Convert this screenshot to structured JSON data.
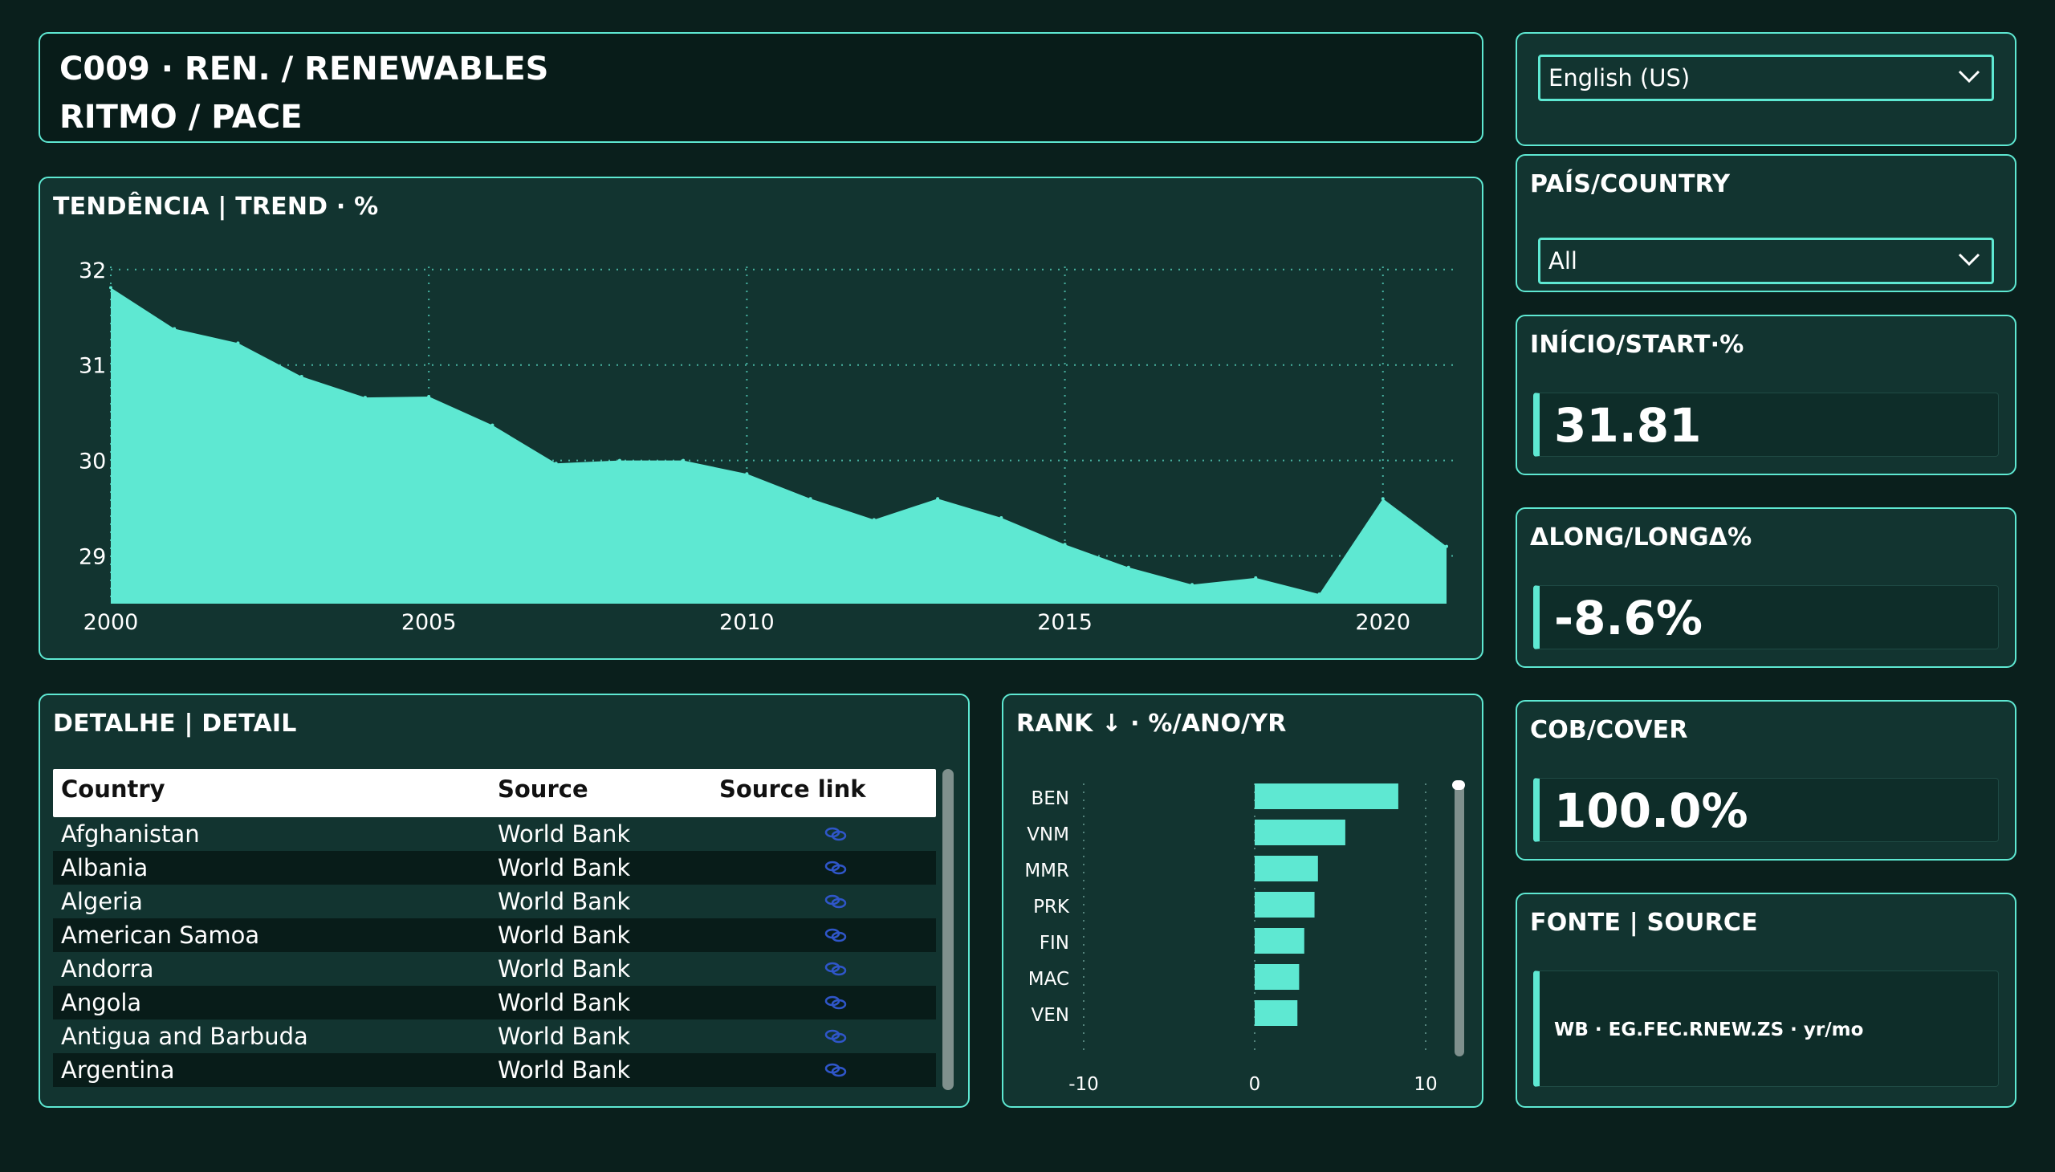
{
  "header": {
    "title_line1": "C009 · REN. / RENEWABLES",
    "title_line2": "RITMO / PACE"
  },
  "language_select": {
    "value": "English (US)"
  },
  "country_filter": {
    "title": "PAÍS/COUNTRY",
    "value": "All"
  },
  "kpis": [
    {
      "title": "INÍCIO/START·%",
      "value": "31.81"
    },
    {
      "title": "ΔLONG/LONGΔ%",
      "value": "-8.6%"
    },
    {
      "title": "COB/COVER",
      "value": "100.0%"
    }
  ],
  "source": {
    "title": "FONTE | SOURCE",
    "text": "WB · EG.FEC.RNEW.ZS · yr/mo"
  },
  "trend": {
    "title": "TENDÊNCIA | TREND · %"
  },
  "detail": {
    "title": "DETALHE | DETAIL",
    "columns": [
      "Country",
      "Source",
      "Source link"
    ],
    "rows": [
      {
        "country": "Afghanistan",
        "source": "World Bank"
      },
      {
        "country": "Albania",
        "source": "World Bank"
      },
      {
        "country": "Algeria",
        "source": "World Bank"
      },
      {
        "country": "American Samoa",
        "source": "World Bank"
      },
      {
        "country": "Andorra",
        "source": "World Bank"
      },
      {
        "country": "Angola",
        "source": "World Bank"
      },
      {
        "country": "Antigua and Barbuda",
        "source": "World Bank"
      },
      {
        "country": "Argentina",
        "source": "World Bank"
      }
    ]
  },
  "rank": {
    "title": "RANK ↓ · %/ANO/YR"
  },
  "colors": {
    "accent": "#5ee8d2",
    "panel": "#123430",
    "background": "#0a1f1c",
    "link_icon": "#2f56c9"
  },
  "chart_data": [
    {
      "type": "area",
      "x": [
        2000,
        2001,
        2002,
        2003,
        2004,
        2005,
        2006,
        2007,
        2008,
        2009,
        2010,
        2011,
        2012,
        2013,
        2014,
        2015,
        2016,
        2017,
        2018,
        2019,
        2020,
        2021
      ],
      "values": [
        31.81,
        31.38,
        31.23,
        30.88,
        30.66,
        30.67,
        30.37,
        29.97,
        30.0,
        30.0,
        29.86,
        29.6,
        29.38,
        29.6,
        29.4,
        29.12,
        28.88,
        28.7,
        28.77,
        28.6,
        29.6,
        29.1
      ],
      "x_ticks": [
        2000,
        2005,
        2010,
        2015,
        2020
      ],
      "y_ticks": [
        29,
        30,
        31,
        32
      ],
      "xlim": [
        2000,
        2021
      ],
      "ylim": [
        28.5,
        32.2
      ],
      "grid": true
    },
    {
      "type": "bar",
      "orientation": "horizontal",
      "categories": [
        "BEN",
        "VNM",
        "MMR",
        "PRK",
        "FIN",
        "MAC",
        "VEN"
      ],
      "values": [
        8.4,
        5.3,
        3.7,
        3.5,
        2.9,
        2.6,
        2.5
      ],
      "x_ticks": [
        -10,
        0,
        10
      ],
      "xlim": [
        -10,
        10
      ]
    }
  ]
}
